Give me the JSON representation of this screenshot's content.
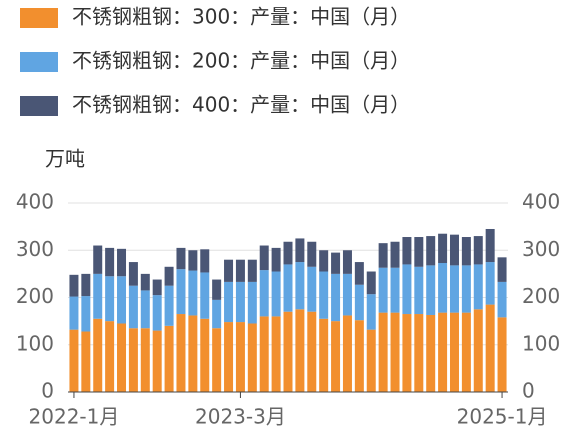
{
  "chart_data": {
    "type": "stacked_bar",
    "y_label": "万吨",
    "categories": [
      "2022-1月",
      null,
      null,
      null,
      null,
      null,
      null,
      null,
      null,
      null,
      null,
      null,
      null,
      null,
      "2023-3月",
      null,
      null,
      null,
      null,
      null,
      null,
      null,
      null,
      null,
      null,
      null,
      null,
      null,
      null,
      null,
      null,
      null,
      null,
      null,
      null,
      null,
      "2025-1月"
    ],
    "series": [
      {
        "name": "不锈钢粗钢：300：产量：中国（月）",
        "color": "#f28f2e",
        "values": [
          132,
          128,
          155,
          150,
          145,
          135,
          135,
          130,
          140,
          165,
          162,
          155,
          135,
          148,
          148,
          145,
          160,
          160,
          170,
          175,
          170,
          155,
          150,
          162,
          152,
          132,
          168,
          168,
          165,
          165,
          163,
          168,
          168,
          168,
          175,
          185,
          158
        ]
      },
      {
        "name": "不锈钢粗钢：200：产量：中国（月）",
        "color": "#60a5e2",
        "values": [
          70,
          75,
          95,
          95,
          100,
          90,
          80,
          75,
          85,
          95,
          95,
          98,
          60,
          85,
          85,
          88,
          98,
          95,
          100,
          100,
          95,
          100,
          100,
          88,
          75,
          75,
          95,
          95,
          105,
          100,
          105,
          105,
          100,
          100,
          95,
          90,
          75
        ]
      },
      {
        "name": "不锈钢粗钢：400：产量：中国（月）",
        "color": "#4a5675",
        "values": [
          46,
          47,
          60,
          60,
          58,
          50,
          35,
          33,
          40,
          45,
          43,
          49,
          43,
          47,
          47,
          47,
          52,
          50,
          48,
          50,
          53,
          45,
          45,
          50,
          48,
          48,
          52,
          55,
          58,
          63,
          62,
          62,
          65,
          60,
          60,
          70,
          52
        ]
      }
    ],
    "ylim": [
      0,
      400
    ],
    "yticks": [
      0,
      100,
      200,
      300,
      400
    ],
    "y2lim": [
      0,
      400
    ],
    "y2ticks": [
      0,
      100,
      200,
      300,
      400
    ],
    "grid": true
  }
}
